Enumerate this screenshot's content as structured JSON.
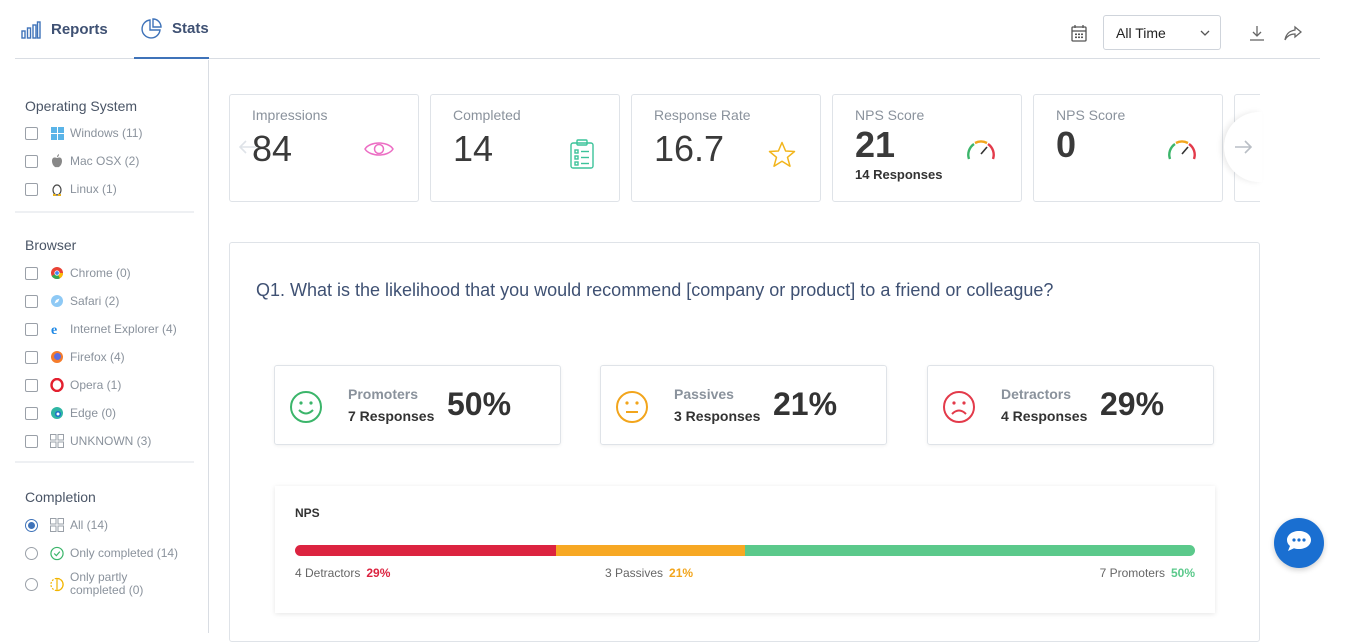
{
  "tabs": [
    {
      "label": "Reports"
    },
    {
      "label": "Stats"
    }
  ],
  "date_filter": {
    "value": "All Time"
  },
  "sidebar": {
    "os": {
      "title": "Operating System",
      "items": [
        {
          "label": "Windows (11)"
        },
        {
          "label": "Mac OSX (2)"
        },
        {
          "label": "Linux (1)"
        }
      ]
    },
    "browser": {
      "title": "Browser",
      "items": [
        {
          "label": "Chrome (0)"
        },
        {
          "label": "Safari (2)"
        },
        {
          "label": "Internet Explorer (4)"
        },
        {
          "label": "Firefox (4)"
        },
        {
          "label": "Opera (1)"
        },
        {
          "label": "Edge (0)"
        },
        {
          "label": "UNKNOWN (3)"
        }
      ]
    },
    "completion": {
      "title": "Completion",
      "items": [
        {
          "label": "All (14)"
        },
        {
          "label": "Only completed (14)"
        },
        {
          "label": "Only partly completed (0)"
        }
      ]
    }
  },
  "cards": [
    {
      "label": "Impressions",
      "value": "84"
    },
    {
      "label": "Completed",
      "value": "14"
    },
    {
      "label": "Response Rate",
      "value": "16.7"
    },
    {
      "label": "NPS Score",
      "value": "21",
      "sub": "14 Responses"
    },
    {
      "label": "NPS Score",
      "value": "0"
    }
  ],
  "question": {
    "text": "Q1. What is the likelihood that you would recommend [company or product] to a friend or colleague?"
  },
  "nps_groups": [
    {
      "label": "Promoters",
      "responses": "7 Responses",
      "percent": "50%"
    },
    {
      "label": "Passives",
      "responses": "3 Responses",
      "percent": "21%"
    },
    {
      "label": "Detractors",
      "responses": "4 Responses",
      "percent": "29%"
    }
  ],
  "nps_bar": {
    "title": "NPS",
    "detractors": {
      "label": "4 Detractors",
      "percent": "29%",
      "share": 29
    },
    "passives": {
      "label": "3 Passives",
      "percent": "21%",
      "share": 21
    },
    "promoters": {
      "label": "7 Promoters",
      "percent": "50%",
      "share": 50
    }
  },
  "colors": {
    "accent": "#3f73b9",
    "promoter": "#5bc98b",
    "passive": "#f7a823",
    "detractor": "#dc2340"
  }
}
